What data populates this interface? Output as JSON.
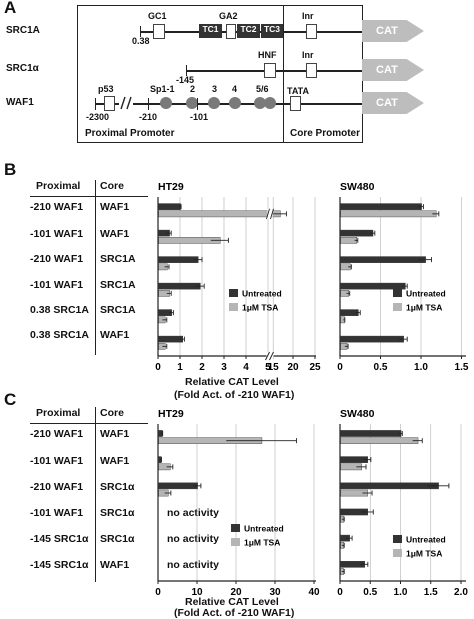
{
  "panelA": {
    "letter": "A",
    "constructs": [
      "SRC1A",
      "SRC1α",
      "WAF1"
    ],
    "cat": "CAT",
    "elements": {
      "gc1": "GC1",
      "ga2": "GA2",
      "tc1": "TC1",
      "tc2": "TC2",
      "tc3": "TC3",
      "inr1": "Inr",
      "inr2": "Inr",
      "hnf": "HNF",
      "tata": "TATA",
      "p53": "p53",
      "sp1": "Sp1-1",
      "n2": "2",
      "n3": "3",
      "n4": "4",
      "n56": "5/6"
    },
    "positions": {
      "p038": "0.38",
      "m145": "-145",
      "m2300": "-2300",
      "m210": "-210",
      "m101": "-101"
    },
    "proximal_label": "Proximal Promoter",
    "core_label": "Core Promoter"
  },
  "panelB": {
    "letter": "B",
    "col_proximal": "Proximal",
    "col_core": "Core",
    "rows": [
      {
        "proximal": "-210 WAF1",
        "core": "WAF1"
      },
      {
        "proximal": "-101 WAF1",
        "core": "WAF1"
      },
      {
        "proximal": "-210 WAF1",
        "core": "SRC1A"
      },
      {
        "proximal": "-101 WAF1",
        "core": "SRC1A"
      },
      {
        "proximal": "0.38 SRC1A",
        "core": "SRC1A"
      },
      {
        "proximal": "0.38 SRC1A",
        "core": "WAF1"
      }
    ],
    "xlabel_line1": "Relative CAT Level",
    "xlabel_line2": "(Fold Act. of -210 WAF1)"
  },
  "panelC": {
    "letter": "C",
    "col_proximal": "Proximal",
    "col_core": "Core",
    "rows": [
      {
        "proximal": "-210 WAF1",
        "core": "WAF1"
      },
      {
        "proximal": "-101 WAF1",
        "core": "WAF1"
      },
      {
        "proximal": "-210 WAF1",
        "core": "SRC1α"
      },
      {
        "proximal": "-101 WAF1",
        "core": "SRC1α"
      },
      {
        "proximal": "-145 SRC1α",
        "core": "SRC1α"
      },
      {
        "proximal": "-145 SRC1α",
        "core": "WAF1"
      }
    ],
    "no_activity": "no activity",
    "xlabel_line1": "Relative CAT Level",
    "xlabel_line2": "(Fold Act. of -210 WAF1)"
  },
  "colors": {
    "untreated": "#333333",
    "tsa": "#b5b5b5",
    "cat_arrow": "#bdbdbd"
  },
  "chart_data": [
    {
      "id": "B-HT29",
      "type": "bar",
      "orientation": "horizontal",
      "title": "HT29",
      "x_tick_labels": [
        "0",
        "1",
        "2",
        "3",
        "4",
        "5",
        "5",
        "15",
        "20",
        "25"
      ],
      "axis_break": "between 5 and 15",
      "categories": [
        "-210 WAF1 / WAF1",
        "-101 WAF1 / WAF1",
        "-210 WAF1 / SRC1A",
        "-101 WAF1 / SRC1A",
        "0.38 SRC1A / SRC1A",
        "0.38 SRC1A / WAF1"
      ],
      "series": [
        {
          "name": "Untreated",
          "values": [
            1.0,
            0.5,
            1.8,
            1.9,
            0.6,
            1.1
          ],
          "errors": [
            0.05,
            0.1,
            0.2,
            0.2,
            0.1,
            0.1
          ]
        },
        {
          "name": "1μM TSA",
          "values": [
            17.0,
            2.8,
            0.4,
            0.5,
            0.3,
            0.3
          ],
          "errors": [
            1.5,
            0.4,
            0.1,
            0.1,
            0.1,
            0.1
          ]
        }
      ],
      "legend": "bottom-right"
    },
    {
      "id": "B-SW480",
      "type": "bar",
      "orientation": "horizontal",
      "title": "SW480",
      "x_tick_labels": [
        "0",
        "0.5",
        "1.0",
        "1.5"
      ],
      "xlim": [
        0,
        1.5
      ],
      "categories": [
        "-210 WAF1 / WAF1",
        "-101 WAF1 / WAF1",
        "-210 WAF1 / SRC1A",
        "-101 WAF1 / SRC1A",
        "0.38 SRC1A / SRC1A",
        "0.38 SRC1A / WAF1"
      ],
      "series": [
        {
          "name": "Untreated",
          "values": [
            1.0,
            0.4,
            1.05,
            0.8,
            0.22,
            0.78
          ],
          "errors": [
            0.03,
            0.03,
            0.08,
            0.03,
            0.03,
            0.05
          ]
        },
        {
          "name": "1μM TSA",
          "values": [
            1.18,
            0.2,
            0.12,
            0.1,
            0.05,
            0.08
          ],
          "errors": [
            0.04,
            0.02,
            0.02,
            0.02,
            0.01,
            0.02
          ]
        }
      ],
      "legend": "bottom-right"
    },
    {
      "id": "C-HT29",
      "type": "bar",
      "orientation": "horizontal",
      "title": "HT29",
      "x_tick_labels": [
        "0",
        "10",
        "20",
        "30",
        "40"
      ],
      "xlim": [
        0,
        40
      ],
      "categories": [
        "-210 WAF1 / WAF1",
        "-101 WAF1 / WAF1",
        "-210 WAF1 / SRC1α",
        "-101 WAF1 / SRC1α",
        "-145 SRC1α / SRC1α",
        "-145 SRC1α / WAF1"
      ],
      "series": [
        {
          "name": "Untreated",
          "values": [
            1.0,
            0.7,
            10.0,
            null,
            null,
            null
          ],
          "errors": [
            0.2,
            0.2,
            1.0,
            null,
            null,
            null
          ]
        },
        {
          "name": "1μM TSA",
          "values": [
            26.5,
            3.0,
            2.5,
            null,
            null,
            null
          ],
          "errors": [
            9.0,
            0.8,
            0.8,
            null,
            null,
            null
          ]
        }
      ]
    },
    {
      "id": "C-SW480",
      "type": "bar",
      "orientation": "horizontal",
      "title": "SW480",
      "x_tick_labels": [
        "0",
        "0.5",
        "1.0",
        "1.5",
        "2.0"
      ],
      "xlim": [
        0,
        2.0
      ],
      "categories": [
        "-210 WAF1 / WAF1",
        "-101 WAF1 / WAF1",
        "-210 WAF1 / SRC1α",
        "-101 WAF1 / SRC1α",
        "-145 SRC1α / SRC1α",
        "-145 SRC1α / WAF1"
      ],
      "series": [
        {
          "name": "Untreated",
          "values": [
            1.0,
            0.45,
            1.62,
            0.45,
            0.15,
            0.4
          ],
          "errors": [
            0.03,
            0.06,
            0.18,
            0.1,
            0.05,
            0.06
          ]
        },
        {
          "name": "1μM TSA",
          "values": [
            1.28,
            0.35,
            0.45,
            0.05,
            0.05,
            0.05
          ],
          "errors": [
            0.08,
            0.08,
            0.08,
            0.02,
            0.02,
            0.02
          ]
        }
      ],
      "legend": "bottom-right"
    }
  ]
}
